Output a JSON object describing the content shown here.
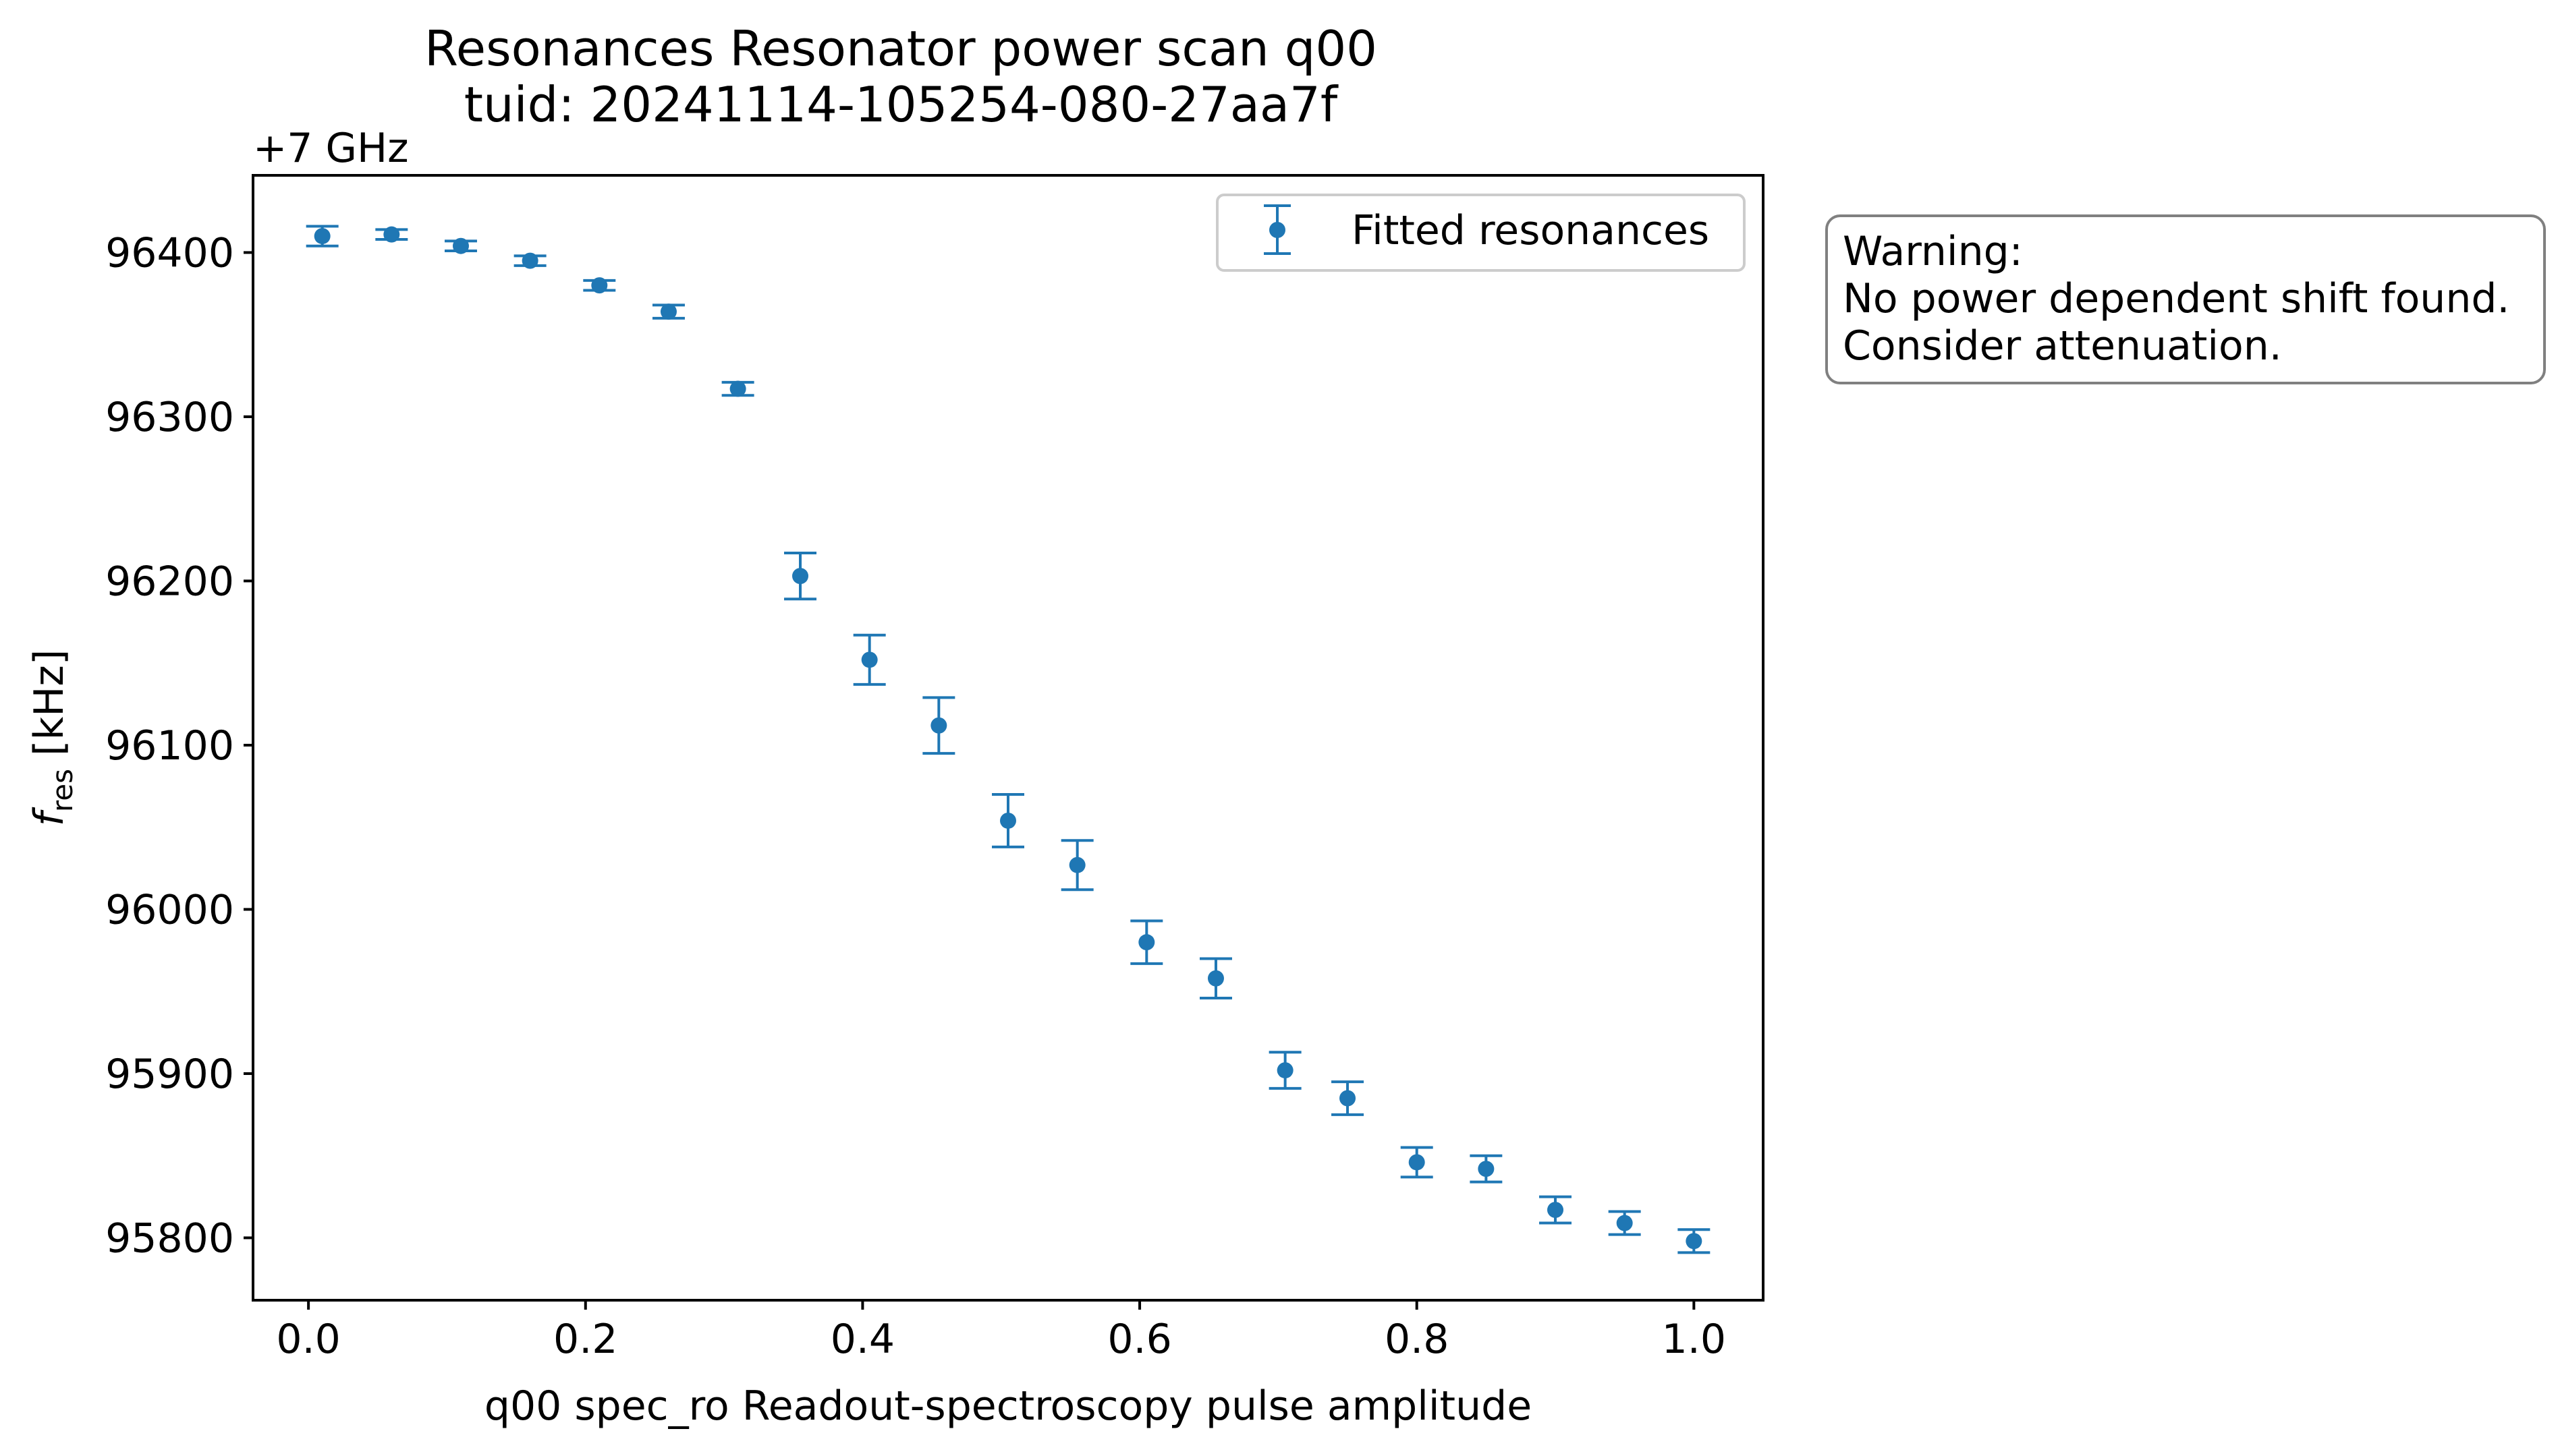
{
  "chart_data": {
    "type": "scatter",
    "title": "Resonances Resonator power scan q00",
    "subtitle": "tuid: 20241114-105254-080-27aa7f",
    "offset_label": "+7 GHz",
    "xlabel": "q00 spec_ro Readout-spectroscopy pulse amplitude",
    "ylabel_main": "f",
    "ylabel_sub": "res",
    "ylabel_unit": " [kHz]",
    "xlim": [
      -0.04,
      1.05
    ],
    "ylim": [
      95762,
      96447
    ],
    "xticks": [
      0.0,
      0.2,
      0.4,
      0.6,
      0.8,
      1.0
    ],
    "xtick_labels": [
      "0.0",
      "0.2",
      "0.4",
      "0.6",
      "0.8",
      "1.0"
    ],
    "yticks": [
      95800,
      95900,
      96000,
      96100,
      96200,
      96300,
      96400
    ],
    "ytick_labels": [
      "95800",
      "95900",
      "96000",
      "96100",
      "96200",
      "96300",
      "96400"
    ],
    "grid": false,
    "legend_position": "upper right",
    "series": [
      {
        "name": "Fitted resonances",
        "color": "#1f77b4",
        "x": [
          0.01,
          0.06,
          0.11,
          0.16,
          0.21,
          0.26,
          0.31,
          0.355,
          0.405,
          0.455,
          0.505,
          0.555,
          0.605,
          0.655,
          0.705,
          0.75,
          0.8,
          0.85,
          0.9,
          0.95,
          1.0
        ],
        "y": [
          96410,
          96411,
          96404,
          96395,
          96380,
          96364,
          96317,
          96203,
          96152,
          96112,
          96054,
          96027,
          95980,
          95958,
          95902,
          95885,
          95846,
          95842,
          95817,
          95809,
          95798
        ],
        "err": [
          6,
          3,
          3,
          3,
          3,
          4,
          4,
          14,
          15,
          17,
          16,
          15,
          13,
          12,
          11,
          10,
          9,
          8,
          8,
          7,
          7
        ]
      }
    ],
    "annotation": {
      "lines": [
        "Warning:",
        "No power dependent shift found.",
        "Consider attenuation."
      ]
    }
  }
}
